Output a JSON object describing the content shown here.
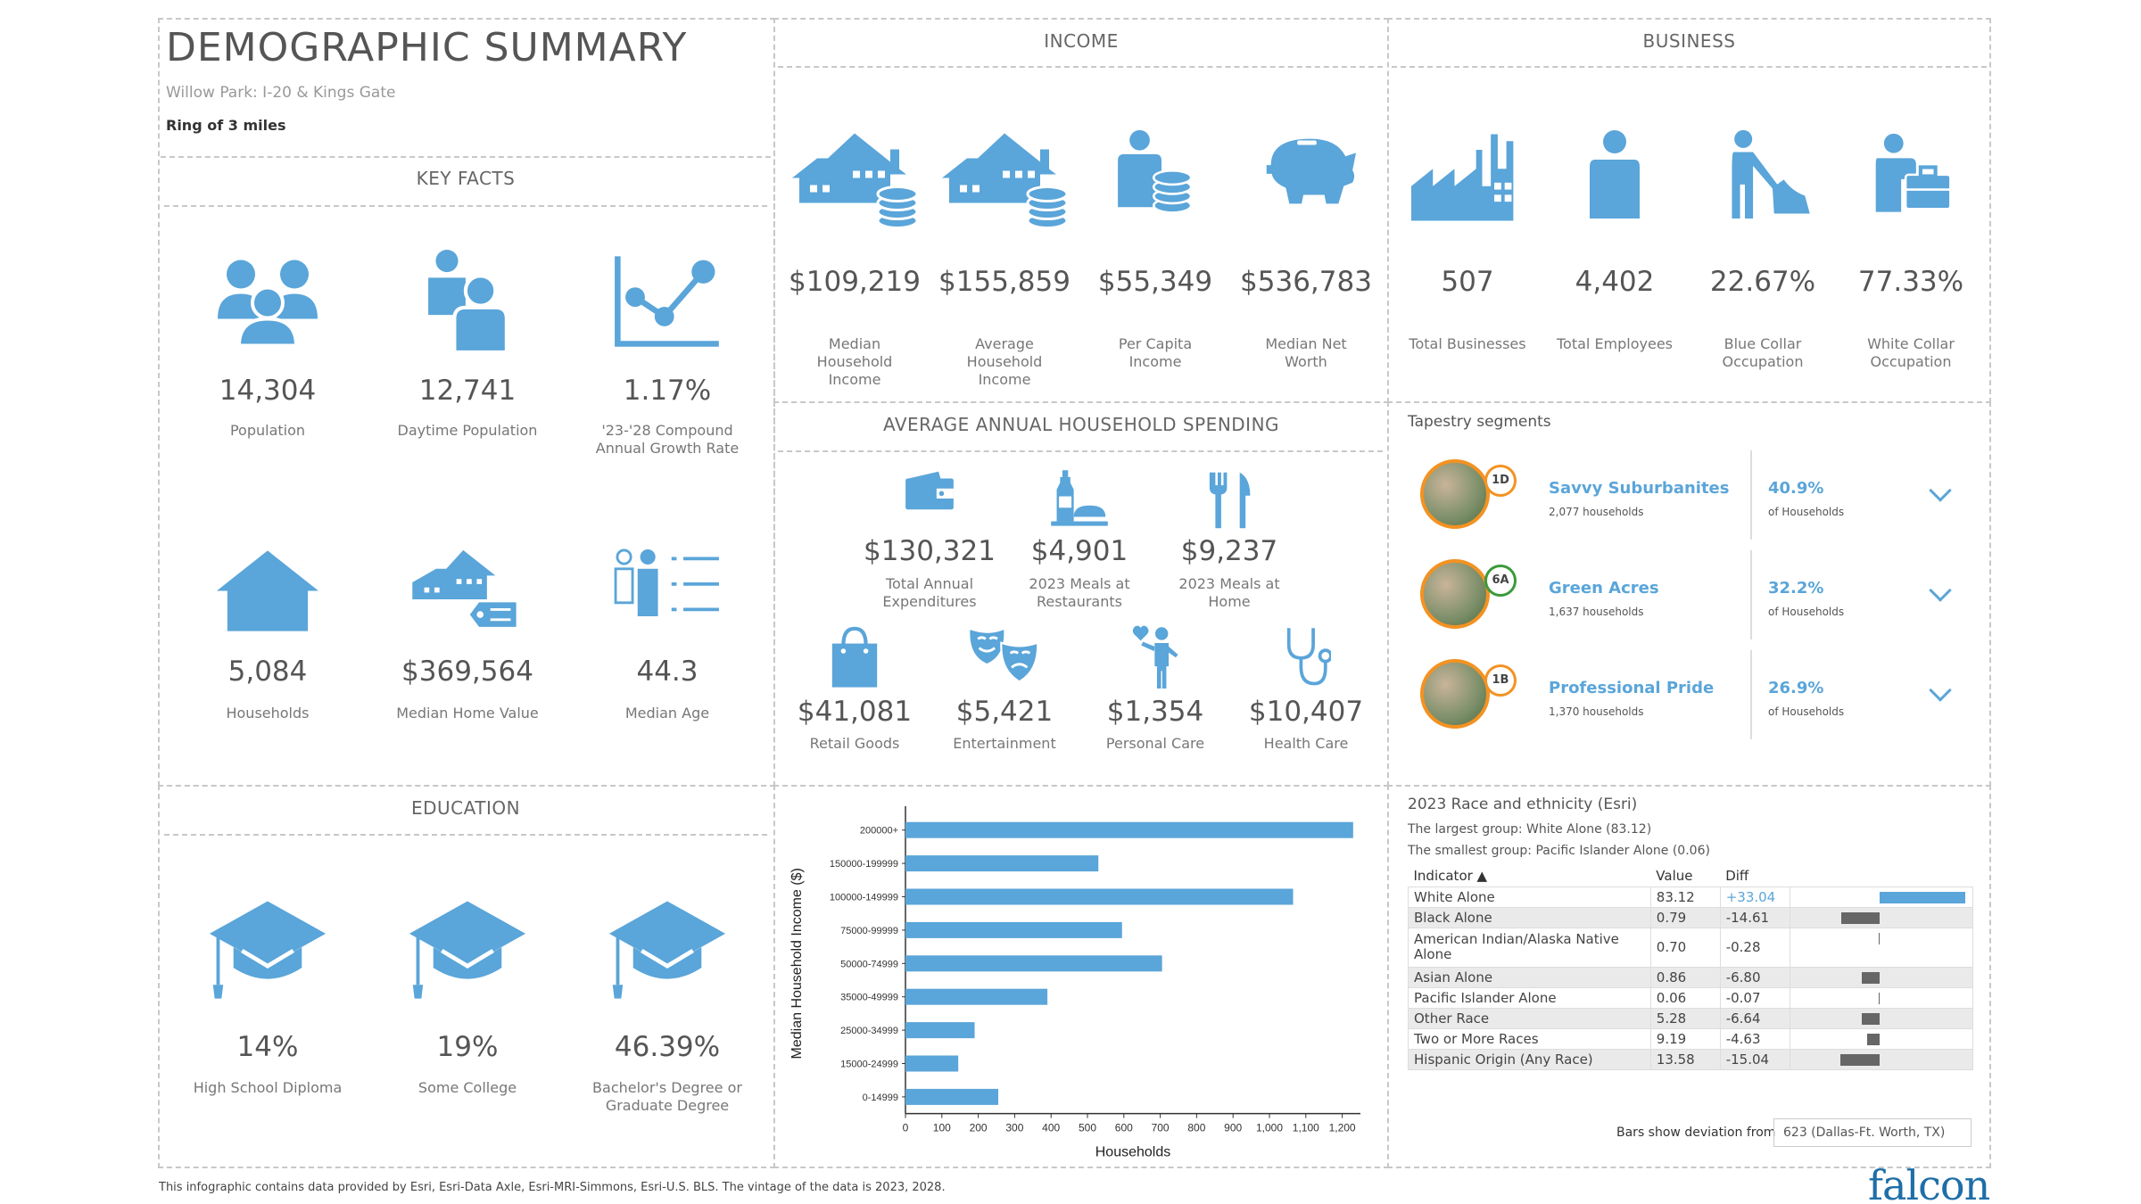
{
  "title": "DEMOGRAPHIC SUMMARY",
  "location": "Willow Park: I-20 & Kings Gate",
  "ring": "Ring of 3 miles",
  "sections": {
    "key_facts": "KEY FACTS",
    "income": "INCOME",
    "business": "BUSINESS",
    "spending": "AVERAGE ANNUAL HOUSEHOLD SPENDING",
    "education": "EDUCATION"
  },
  "key_facts": [
    {
      "value": "14,304",
      "label": "Population",
      "icon": "people-icon"
    },
    {
      "value": "12,741",
      "label": "Daytime Population",
      "icon": "daytime-people-icon"
    },
    {
      "value": "1.17%",
      "label": "'23-'28 Compound Annual Growth Rate",
      "icon": "growth-chart-icon"
    },
    {
      "value": "5,084",
      "label": "Households",
      "icon": "house-icon"
    },
    {
      "value": "$369,564",
      "label": "Median Home Value",
      "icon": "home-value-icon"
    },
    {
      "value": "44.3",
      "label": "Median Age",
      "icon": "age-icon"
    }
  ],
  "income": [
    {
      "value": "$109,219",
      "label": "Median Household Income",
      "icon": "house-coins-icon"
    },
    {
      "value": "$155,859",
      "label": "Average Household Income",
      "icon": "house-coins-icon"
    },
    {
      "value": "$55,349",
      "label": "Per Capita Income",
      "icon": "person-coins-icon"
    },
    {
      "value": "$536,783",
      "label": "Median Net Worth",
      "icon": "piggy-bank-icon"
    }
  ],
  "business": [
    {
      "value": "507",
      "label": "Total Businesses",
      "icon": "factory-icon"
    },
    {
      "value": "4,402",
      "label": "Total Employees",
      "icon": "employee-icon"
    },
    {
      "value": "22.67%",
      "label": "Blue Collar Occupation",
      "icon": "worker-icon"
    },
    {
      "value": "77.33%",
      "label": "White Collar Occupation",
      "icon": "briefcase-person-icon"
    }
  ],
  "spending": [
    {
      "value": "$130,321",
      "label": "Total Annual Expenditures",
      "icon": "wallet-icon"
    },
    {
      "value": "$4,901",
      "label": "2023 Meals at Restaurants",
      "icon": "restaurant-icon"
    },
    {
      "value": "$9,237",
      "label": "2023 Meals at Home",
      "icon": "fork-knife-icon"
    },
    {
      "value": "$41,081",
      "label": "Retail Goods",
      "icon": "shopping-bag-icon"
    },
    {
      "value": "$5,421",
      "label": "Entertainment",
      "icon": "theater-masks-icon"
    },
    {
      "value": "$1,354",
      "label": "Personal Care",
      "icon": "personal-care-icon"
    },
    {
      "value": "$10,407",
      "label": "Health Care",
      "icon": "stethoscope-icon"
    }
  ],
  "tapestry": {
    "title": "Tapestry segments",
    "segments": [
      {
        "code": "1D",
        "name": "Savvy Suburbanites",
        "households": "2,077 households",
        "pct": "40.9%",
        "pct_label": "of Households"
      },
      {
        "code": "6A",
        "name": "Green Acres",
        "households": "1,637 households",
        "pct": "32.2%",
        "pct_label": "of Households"
      },
      {
        "code": "1B",
        "name": "Professional Pride",
        "households": "1,370 households",
        "pct": "26.9%",
        "pct_label": "of Households"
      }
    ]
  },
  "education": [
    {
      "value": "14%",
      "label": "High School Diploma",
      "icon": "graduation-cap-icon"
    },
    {
      "value": "19%",
      "label": "Some College",
      "icon": "graduation-cap-icon"
    },
    {
      "value": "46.39%",
      "label": "Bachelor's Degree or Graduate Degree",
      "icon": "graduation-cap-icon"
    }
  ],
  "chart_data": {
    "type": "bar",
    "orientation": "horizontal",
    "categories": [
      "200000+",
      "150000-199999",
      "100000-149999",
      "75000-99999",
      "50000-74999",
      "35000-49999",
      "25000-34999",
      "15000-24999",
      "0-14999"
    ],
    "values": [
      1230,
      530,
      1065,
      595,
      705,
      390,
      190,
      145,
      255
    ],
    "xlabel": "Households",
    "ylabel": "Median Household Income ($)",
    "xticks": [
      "0",
      "100",
      "200",
      "300",
      "400",
      "500",
      "600",
      "700",
      "800",
      "900",
      "1,000",
      "1,100",
      "1,200"
    ],
    "xlim": [
      0,
      1250
    ],
    "color": "#5aa5d9"
  },
  "race": {
    "title": "2023 Race and ethnicity (Esri)",
    "largest": "The largest group: White Alone (83.12)",
    "smallest": "The smallest group: Pacific Islander Alone (0.06)",
    "headers": {
      "indicator": "Indicator ▲",
      "value": "Value",
      "diff": "Diff"
    },
    "rows": [
      {
        "indicator": "White Alone",
        "value": "83.12",
        "diff": "+33.04",
        "d": 33.04
      },
      {
        "indicator": "Black Alone",
        "value": "0.79",
        "diff": "-14.61",
        "d": -14.61
      },
      {
        "indicator": "American Indian/Alaska Native Alone",
        "value": "0.70",
        "diff": "-0.28",
        "d": -0.28
      },
      {
        "indicator": "Asian Alone",
        "value": "0.86",
        "diff": "-6.80",
        "d": -6.8
      },
      {
        "indicator": "Pacific Islander Alone",
        "value": "0.06",
        "diff": "-0.07",
        "d": -0.07
      },
      {
        "indicator": "Other Race",
        "value": "5.28",
        "diff": "-6.64",
        "d": -6.64
      },
      {
        "indicator": "Two or More Races",
        "value": "9.19",
        "diff": "-4.63",
        "d": -4.63
      },
      {
        "indicator": "Hispanic Origin (Any Race)",
        "value": "13.58",
        "diff": "-15.04",
        "d": -15.04
      }
    ],
    "deviation_label": "Bars show deviation from",
    "deviation_value": "623 (Dallas-Ft. Worth, TX)"
  },
  "footer": "This infographic contains data provided by Esri, Esri-Data Axle, Esri-MRI-Simmons, Esri-U.S. BLS. The vintage of the data is 2023, 2028.",
  "logo": "falcon",
  "colors": {
    "accent": "#5aa5d9",
    "tapestry_ring": "#f39222",
    "text": "#555555"
  }
}
